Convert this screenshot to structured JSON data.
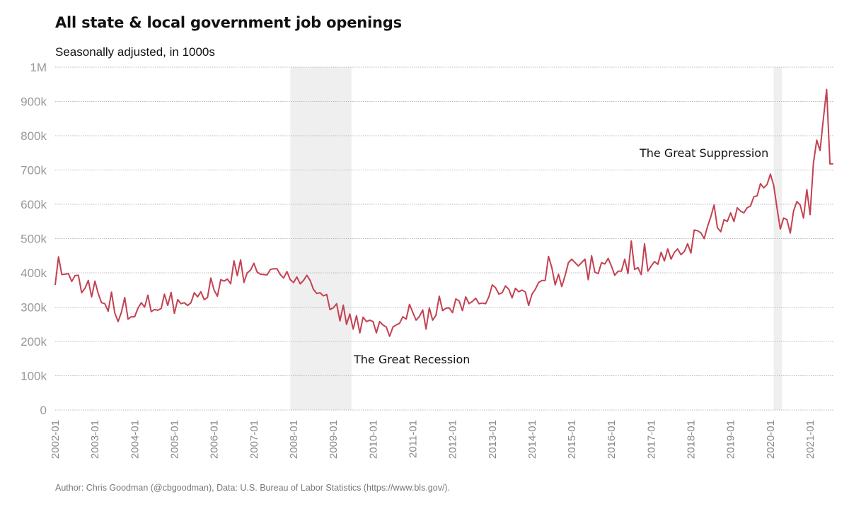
{
  "title": "All state & local government job openings",
  "subtitle": "Seasonally adjusted, in 1000s",
  "caption": "Author: Chris Goodman (@cbgoodman), Data: U.S. Bureau of Labor Statistics (https://www.bls.gov/).",
  "chart_data": {
    "type": "line",
    "title": "All state & local government job openings",
    "subtitle": "Seasonally adjusted, in 1000s",
    "xlabel": "",
    "ylabel": "",
    "x_start": "2002-01",
    "x_end": "2021-08",
    "ylim": [
      0,
      1000
    ],
    "y_ticks": [
      0,
      100,
      200,
      300,
      400,
      500,
      600,
      700,
      800,
      900,
      1000
    ],
    "y_tick_labels": [
      "0",
      "100k",
      "200k",
      "300k",
      "400k",
      "500k",
      "600k",
      "700k",
      "800k",
      "900k",
      "1M"
    ],
    "x_tick_labels": [
      "2002-01",
      "2003-01",
      "2004-01",
      "2005-01",
      "2006-01",
      "2007-01",
      "2008-01",
      "2009-01",
      "2010-01",
      "2011-01",
      "2012-01",
      "2013-01",
      "2014-01",
      "2015-01",
      "2016-01",
      "2017-01",
      "2018-01",
      "2019-01",
      "2020-01",
      "2021-01"
    ],
    "grid": true,
    "line_color": "#c44152",
    "shade_color": "#efefef",
    "recessions": [
      {
        "start": "2007-12",
        "end": "2009-06",
        "label": "The Great Recession"
      },
      {
        "start": "2020-02",
        "end": "2020-04",
        "label": "The Great Suppression"
      }
    ],
    "series": [
      {
        "name": "Job openings",
        "values": [
          365,
          447,
          395,
          396,
          398,
          375,
          392,
          393,
          342,
          355,
          378,
          330,
          376,
          340,
          313,
          310,
          288,
          344,
          283,
          258,
          285,
          328,
          265,
          272,
          272,
          297,
          313,
          300,
          335,
          287,
          293,
          291,
          296,
          338,
          305,
          343,
          282,
          322,
          310,
          313,
          305,
          313,
          342,
          330,
          345,
          322,
          328,
          385,
          350,
          332,
          380,
          376,
          382,
          368,
          435,
          392,
          438,
          372,
          400,
          408,
          428,
          402,
          396,
          395,
          394,
          410,
          412,
          412,
          395,
          385,
          404,
          380,
          372,
          388,
          368,
          378,
          393,
          378,
          352,
          340,
          342,
          333,
          337,
          293,
          298,
          310,
          260,
          306,
          250,
          280,
          236,
          275,
          225,
          271,
          258,
          262,
          258,
          225,
          258,
          248,
          242,
          215,
          242,
          248,
          253,
          272,
          265,
          308,
          285,
          262,
          273,
          292,
          236,
          298,
          262,
          276,
          332,
          290,
          297,
          298,
          284,
          324,
          318,
          290,
          330,
          310,
          317,
          326,
          310,
          312,
          310,
          331,
          365,
          357,
          338,
          342,
          362,
          352,
          327,
          355,
          345,
          350,
          344,
          305,
          338,
          352,
          372,
          378,
          378,
          448,
          415,
          365,
          396,
          360,
          392,
          430,
          440,
          430,
          420,
          430,
          440,
          380,
          450,
          402,
          398,
          430,
          426,
          442,
          420,
          393,
          405,
          405,
          440,
          398,
          493,
          410,
          415,
          395,
          485,
          405,
          420,
          433,
          425,
          460,
          435,
          470,
          440,
          460,
          470,
          453,
          462,
          485,
          458,
          525,
          523,
          517,
          500,
          535,
          563,
          598,
          532,
          520,
          555,
          550,
          575,
          550,
          590,
          580,
          575,
          590,
          595,
          622,
          625,
          660,
          648,
          658,
          688,
          655,
          590,
          528,
          560,
          555,
          516,
          580,
          608,
          598,
          560,
          643,
          570,
          720,
          787,
          757,
          850,
          935,
          718,
          718
        ]
      }
    ]
  }
}
